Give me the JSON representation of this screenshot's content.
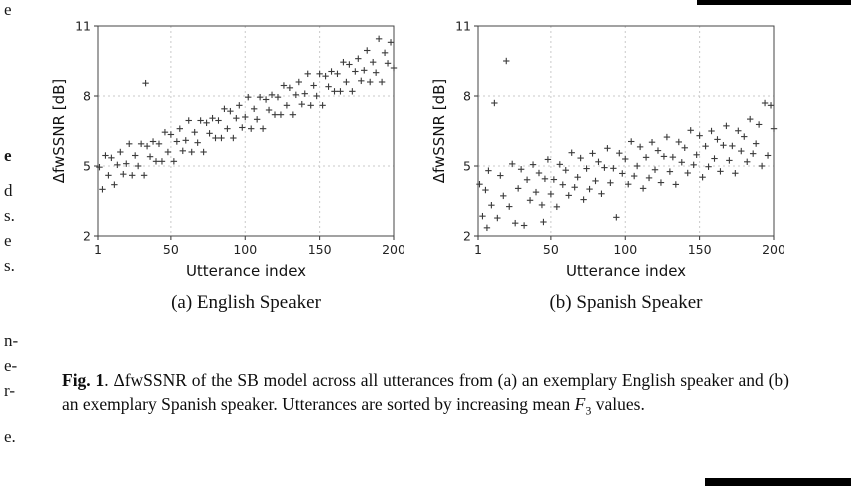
{
  "margin": {
    "fragments": [
      {
        "text": "e"
      },
      {
        "text": "e"
      },
      {
        "text": "d"
      },
      {
        "text": "s."
      },
      {
        "text": "e"
      },
      {
        "text": "s."
      },
      {
        "text": "n-"
      },
      {
        "text": "e-"
      },
      {
        "text": "r-"
      },
      {
        "text": "e."
      }
    ]
  },
  "figure": {
    "subfig_a_label": "(a) English Speaker",
    "subfig_b_label": "(b) Spanish Speaker",
    "caption": {
      "label": "Fig. 1",
      "body1": ". ΔfwSSNR of the SB model across all utterances from (a) an exemplary English speaker and (b) an exemplary Spanish speaker. Utterances are sorted by increasing mean ",
      "f_symbol": "F",
      "f_sub": "3",
      "body2": " values."
    }
  },
  "chart_data": [
    {
      "type": "scatter",
      "title": "(a) English Speaker",
      "xlabel": "Utterance index",
      "ylabel": "ΔfwSSNR [dB]",
      "xlim": [
        1,
        200
      ],
      "ylim": [
        2,
        11
      ],
      "xticks": [
        1,
        50,
        100,
        150,
        200
      ],
      "yticks": [
        2,
        5,
        8,
        11
      ],
      "grid": true,
      "marker": "+",
      "marker_color": "#3a3a3a",
      "points": [
        [
          2,
          4.95
        ],
        [
          4,
          4.0
        ],
        [
          6,
          5.45
        ],
        [
          8,
          4.6
        ],
        [
          10,
          5.35
        ],
        [
          12,
          4.2
        ],
        [
          14,
          5.05
        ],
        [
          16,
          5.6
        ],
        [
          18,
          4.65
        ],
        [
          20,
          5.1
        ],
        [
          22,
          5.95
        ],
        [
          24,
          4.6
        ],
        [
          26,
          5.45
        ],
        [
          28,
          5.0
        ],
        [
          30,
          5.95
        ],
        [
          32,
          4.6
        ],
        [
          33,
          8.55
        ],
        [
          34,
          5.85
        ],
        [
          36,
          5.4
        ],
        [
          38,
          6.05
        ],
        [
          40,
          5.2
        ],
        [
          42,
          5.95
        ],
        [
          44,
          5.2
        ],
        [
          46,
          6.45
        ],
        [
          48,
          5.6
        ],
        [
          50,
          6.35
        ],
        [
          52,
          5.2
        ],
        [
          54,
          6.05
        ],
        [
          56,
          6.6
        ],
        [
          58,
          5.65
        ],
        [
          60,
          6.1
        ],
        [
          62,
          6.95
        ],
        [
          64,
          5.6
        ],
        [
          66,
          6.45
        ],
        [
          68,
          6.0
        ],
        [
          70,
          6.95
        ],
        [
          72,
          5.6
        ],
        [
          74,
          6.85
        ],
        [
          76,
          6.4
        ],
        [
          78,
          7.05
        ],
        [
          80,
          6.2
        ],
        [
          82,
          6.95
        ],
        [
          84,
          6.2
        ],
        [
          86,
          7.45
        ],
        [
          88,
          6.6
        ],
        [
          90,
          7.35
        ],
        [
          92,
          6.2
        ],
        [
          94,
          7.05
        ],
        [
          96,
          7.6
        ],
        [
          98,
          6.65
        ],
        [
          100,
          7.1
        ],
        [
          102,
          7.95
        ],
        [
          104,
          6.6
        ],
        [
          106,
          7.45
        ],
        [
          108,
          7.0
        ],
        [
          110,
          7.95
        ],
        [
          112,
          6.6
        ],
        [
          114,
          7.85
        ],
        [
          116,
          7.4
        ],
        [
          118,
          8.05
        ],
        [
          120,
          7.2
        ],
        [
          122,
          7.95
        ],
        [
          124,
          7.2
        ],
        [
          126,
          8.45
        ],
        [
          128,
          7.6
        ],
        [
          130,
          8.35
        ],
        [
          132,
          7.2
        ],
        [
          134,
          8.05
        ],
        [
          136,
          8.6
        ],
        [
          138,
          7.65
        ],
        [
          140,
          8.1
        ],
        [
          142,
          8.95
        ],
        [
          144,
          7.6
        ],
        [
          146,
          8.45
        ],
        [
          148,
          8.0
        ],
        [
          150,
          8.95
        ],
        [
          152,
          7.6
        ],
        [
          154,
          8.85
        ],
        [
          156,
          8.4
        ],
        [
          158,
          9.05
        ],
        [
          160,
          8.2
        ],
        [
          162,
          8.95
        ],
        [
          164,
          8.2
        ],
        [
          166,
          9.45
        ],
        [
          168,
          8.6
        ],
        [
          170,
          9.35
        ],
        [
          172,
          8.2
        ],
        [
          174,
          9.05
        ],
        [
          176,
          9.6
        ],
        [
          178,
          8.65
        ],
        [
          180,
          9.1
        ],
        [
          182,
          9.95
        ],
        [
          184,
          8.6
        ],
        [
          186,
          9.45
        ],
        [
          188,
          9.0
        ],
        [
          190,
          10.45
        ],
        [
          192,
          8.6
        ],
        [
          194,
          9.85
        ],
        [
          196,
          9.4
        ],
        [
          198,
          10.3
        ],
        [
          200,
          9.2
        ]
      ]
    },
    {
      "type": "scatter",
      "title": "(b) Spanish Speaker",
      "xlabel": "Utterance index",
      "ylabel": "ΔfwSSNR [dB]",
      "xlim": [
        1,
        200
      ],
      "ylim": [
        2,
        11
      ],
      "xticks": [
        1,
        50,
        100,
        150,
        200
      ],
      "yticks": [
        2,
        5,
        8,
        11
      ],
      "grid": true,
      "marker": "+",
      "marker_color": "#3a3a3a",
      "points": [
        [
          2,
          4.22
        ],
        [
          4,
          2.85
        ],
        [
          6,
          3.97
        ],
        [
          7,
          2.35
        ],
        [
          8,
          4.8
        ],
        [
          10,
          3.32
        ],
        [
          12,
          7.7
        ],
        [
          14,
          2.77
        ],
        [
          16,
          4.59
        ],
        [
          18,
          3.72
        ],
        [
          20,
          9.5
        ],
        [
          22,
          3.26
        ],
        [
          24,
          5.09
        ],
        [
          26,
          2.55
        ],
        [
          28,
          4.04
        ],
        [
          30,
          4.86
        ],
        [
          32,
          2.45
        ],
        [
          34,
          4.41
        ],
        [
          36,
          3.53
        ],
        [
          38,
          5.06
        ],
        [
          40,
          3.88
        ],
        [
          42,
          4.7
        ],
        [
          44,
          3.33
        ],
        [
          45,
          2.6
        ],
        [
          46,
          4.45
        ],
        [
          48,
          5.28
        ],
        [
          50,
          3.8
        ],
        [
          52,
          4.42
        ],
        [
          54,
          3.25
        ],
        [
          56,
          5.07
        ],
        [
          58,
          4.2
        ],
        [
          60,
          4.82
        ],
        [
          62,
          3.74
        ],
        [
          64,
          5.57
        ],
        [
          66,
          4.09
        ],
        [
          68,
          4.52
        ],
        [
          70,
          5.34
        ],
        [
          72,
          3.56
        ],
        [
          74,
          4.89
        ],
        [
          76,
          4.01
        ],
        [
          78,
          5.54
        ],
        [
          80,
          4.36
        ],
        [
          82,
          5.18
        ],
        [
          84,
          3.81
        ],
        [
          86,
          4.93
        ],
        [
          88,
          5.76
        ],
        [
          90,
          4.28
        ],
        [
          92,
          4.9
        ],
        [
          94,
          2.8
        ],
        [
          96,
          5.55
        ],
        [
          98,
          4.68
        ],
        [
          100,
          5.3
        ],
        [
          102,
          4.22
        ],
        [
          104,
          6.05
        ],
        [
          106,
          4.57
        ],
        [
          108,
          5.0
        ],
        [
          110,
          5.82
        ],
        [
          112,
          4.04
        ],
        [
          114,
          5.37
        ],
        [
          116,
          4.49
        ],
        [
          118,
          6.02
        ],
        [
          120,
          4.84
        ],
        [
          122,
          5.66
        ],
        [
          124,
          4.29
        ],
        [
          126,
          5.41
        ],
        [
          128,
          6.24
        ],
        [
          130,
          4.76
        ],
        [
          132,
          5.38
        ],
        [
          134,
          4.21
        ],
        [
          136,
          6.03
        ],
        [
          138,
          5.16
        ],
        [
          140,
          5.78
        ],
        [
          142,
          4.7
        ],
        [
          144,
          6.53
        ],
        [
          146,
          5.05
        ],
        [
          148,
          5.48
        ],
        [
          150,
          6.3
        ],
        [
          152,
          4.52
        ],
        [
          154,
          5.85
        ],
        [
          156,
          4.97
        ],
        [
          158,
          6.5
        ],
        [
          160,
          5.32
        ],
        [
          162,
          6.14
        ],
        [
          164,
          4.77
        ],
        [
          166,
          5.89
        ],
        [
          168,
          6.72
        ],
        [
          170,
          5.24
        ],
        [
          172,
          5.86
        ],
        [
          174,
          4.69
        ],
        [
          176,
          6.51
        ],
        [
          178,
          5.64
        ],
        [
          180,
          6.26
        ],
        [
          182,
          5.18
        ],
        [
          184,
          7.01
        ],
        [
          186,
          5.53
        ],
        [
          188,
          5.96
        ],
        [
          190,
          6.78
        ],
        [
          192,
          5.0
        ],
        [
          194,
          7.7
        ],
        [
          196,
          5.45
        ],
        [
          198,
          7.6
        ],
        [
          200,
          6.6
        ]
      ]
    }
  ]
}
